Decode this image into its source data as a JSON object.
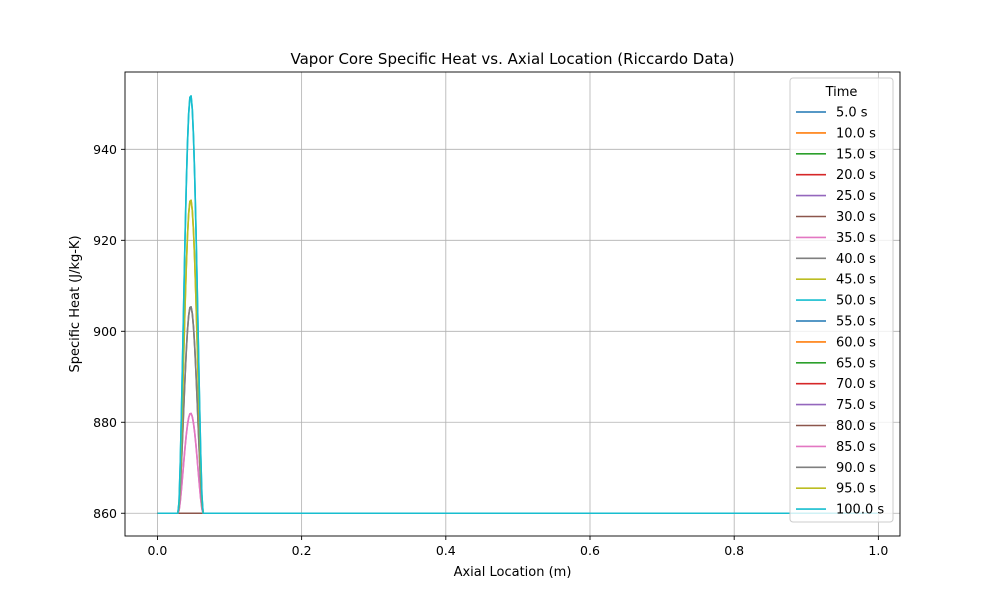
{
  "chart_data": {
    "type": "line",
    "title": "Vapor Core Specific Heat vs. Axial Location (Riccardo Data)",
    "xlabel": "Axial Location (m)",
    "ylabel": "Specific Heat (J/kg-K)",
    "xlim": [
      -0.045,
      1.03
    ],
    "ylim": [
      855,
      957
    ],
    "xticks": [
      0.0,
      0.2,
      0.4,
      0.6,
      0.8,
      1.0
    ],
    "xtick_labels": [
      "0.0",
      "0.2",
      "0.4",
      "0.6",
      "0.8",
      "1.0"
    ],
    "yticks": [
      860,
      880,
      900,
      920,
      940
    ],
    "ytick_labels": [
      "860",
      "880",
      "900",
      "920",
      "940"
    ],
    "grid": true,
    "legend": {
      "title": "Time",
      "placement": "right"
    },
    "baseline": 860,
    "peak_center": 0.046,
    "pulse_half_width": 0.017,
    "series": [
      {
        "name": "5.0 s",
        "color": "#1f77b4",
        "peak": 860
      },
      {
        "name": "10.0 s",
        "color": "#ff7f0e",
        "peak": 860
      },
      {
        "name": "15.0 s",
        "color": "#2ca02c",
        "peak": 860
      },
      {
        "name": "20.0 s",
        "color": "#d62728",
        "peak": 860
      },
      {
        "name": "25.0 s",
        "color": "#9467bd",
        "peak": 860
      },
      {
        "name": "30.0 s",
        "color": "#8c564b",
        "peak": 860
      },
      {
        "name": "35.0 s",
        "color": "#e377c2",
        "peak": 882
      },
      {
        "name": "40.0 s",
        "color": "#7f7f7f",
        "peak": 905.5
      },
      {
        "name": "45.0 s",
        "color": "#bcbd22",
        "peak": 929
      },
      {
        "name": "50.0 s",
        "color": "#17becf",
        "peak": 952
      },
      {
        "name": "55.0 s",
        "color": "#1f77b4",
        "peak": 860
      },
      {
        "name": "60.0 s",
        "color": "#ff7f0e",
        "peak": 860
      },
      {
        "name": "65.0 s",
        "color": "#2ca02c",
        "peak": 860
      },
      {
        "name": "70.0 s",
        "color": "#d62728",
        "peak": 860
      },
      {
        "name": "75.0 s",
        "color": "#9467bd",
        "peak": 860
      },
      {
        "name": "80.0 s",
        "color": "#8c564b",
        "peak": 860
      },
      {
        "name": "85.0 s",
        "color": "#e377c2",
        "peak": 882
      },
      {
        "name": "90.0 s",
        "color": "#7f7f7f",
        "peak": 905.5
      },
      {
        "name": "95.0 s",
        "color": "#bcbd22",
        "peak": 929
      },
      {
        "name": "100.0 s",
        "color": "#17becf",
        "peak": 952
      }
    ]
  }
}
